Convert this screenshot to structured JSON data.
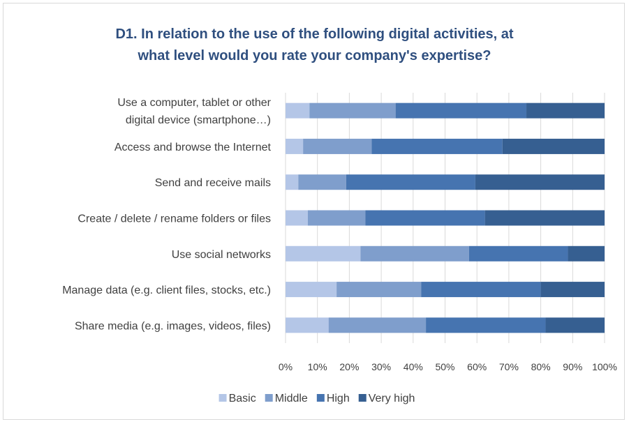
{
  "chart_data": {
    "type": "bar",
    "orientation": "horizontal",
    "stacked": true,
    "percent": true,
    "title": "D1. In relation to the use of the following digital activities, at what level would you rate your company's expertise?",
    "title_lines": [
      "D1. In relation to the use of the following digital activities, at",
      "what level would you rate your company's expertise?"
    ],
    "categories": [
      [
        "Use a computer, tablet or other",
        "digital device (smartphone…)"
      ],
      [
        "Access and browse the Internet"
      ],
      [
        "Send and receive mails"
      ],
      [
        "Create / delete / rename folders or files"
      ],
      [
        "Use social networks"
      ],
      [
        "Manage data (e.g. client files, stocks, etc.)"
      ],
      [
        "Share media (e.g. images, videos, files)"
      ]
    ],
    "series": [
      {
        "name": "Basic",
        "color": "#b4c6e7",
        "values": [
          7.5,
          5.5,
          4,
          7,
          23.5,
          16,
          13.5
        ]
      },
      {
        "name": "Middle",
        "color": "#7f9ecc",
        "values": [
          27,
          21.5,
          15,
          18,
          34,
          26.5,
          30.5
        ]
      },
      {
        "name": "High",
        "color": "#4674b0",
        "values": [
          41,
          41,
          40.5,
          37.5,
          31,
          37.5,
          37.5
        ]
      },
      {
        "name": "Very high",
        "color": "#365f91",
        "values": [
          24.5,
          32,
          40.5,
          37.5,
          11.5,
          20,
          18.5
        ]
      }
    ],
    "xlim": [
      0,
      100
    ],
    "x_ticks": [
      "0%",
      "10%",
      "20%",
      "30%",
      "40%",
      "50%",
      "60%",
      "70%",
      "80%",
      "90%",
      "100%"
    ],
    "grid": true,
    "legend_position": "bottom"
  }
}
